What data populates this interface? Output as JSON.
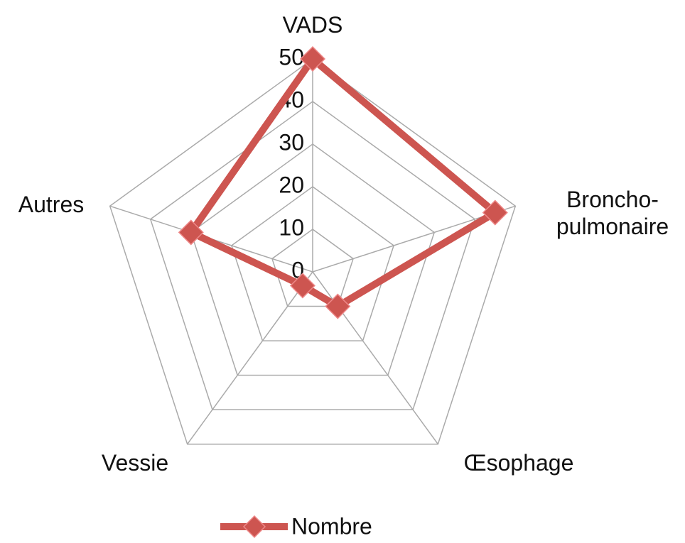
{
  "chart_data": {
    "type": "radar",
    "categories": [
      "VADS",
      "Broncho-pulmonaire",
      "Œsophage",
      "Vessie",
      "Autres"
    ],
    "series": [
      {
        "name": "Nombre",
        "color": "#cd5550",
        "values": [
          50,
          45,
          10,
          4,
          30
        ]
      }
    ],
    "ylim": [
      0,
      50
    ],
    "yticks": [
      0,
      10,
      20,
      30,
      40,
      50
    ],
    "grid": true,
    "legend": "bottom"
  }
}
